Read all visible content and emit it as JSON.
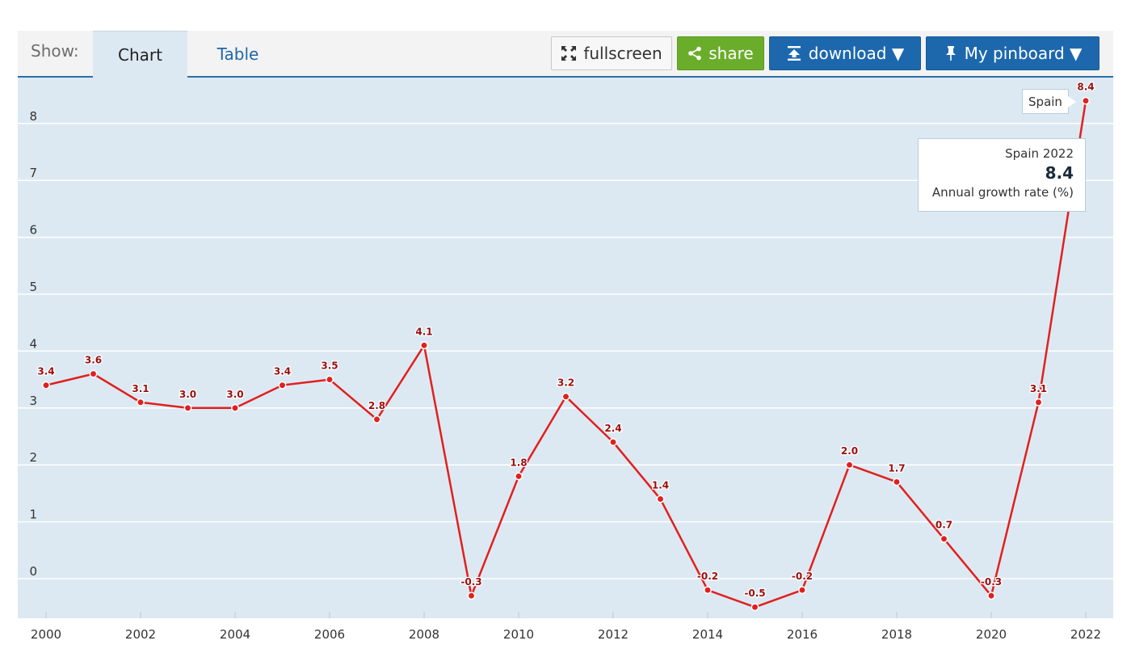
{
  "toolbar": {
    "show_label": "Show:",
    "tabs": [
      {
        "label": "Chart",
        "active": true
      },
      {
        "label": "Table",
        "active": false
      }
    ],
    "buttons": {
      "fullscreen": "fullscreen",
      "share": "share",
      "download": "download ▼",
      "pinboard": "My pinboard ▼"
    },
    "icons": {
      "fullscreen": "expand-arrows-icon",
      "share": "share-nodes-icon",
      "download": "download-icon",
      "pinboard": "pin-icon"
    }
  },
  "colors": {
    "line": "#e0201f",
    "label": "#9b0d0d",
    "plot_background": "#dde9f2",
    "share_button": "#6aad2b",
    "primary_button": "#1d68ad"
  },
  "tooltip": {
    "title": "Spain 2022",
    "value": "8.4",
    "unit": "Annual growth rate (%)"
  },
  "series_tag": "Spain",
  "chart_data": {
    "type": "line",
    "title": "",
    "xlabel": "",
    "ylabel": "",
    "x": [
      2000,
      2001,
      2002,
      2003,
      2004,
      2005,
      2006,
      2007,
      2008,
      2009,
      2010,
      2011,
      2012,
      2013,
      2014,
      2015,
      2016,
      2017,
      2018,
      2019,
      2020,
      2021,
      2022
    ],
    "series": [
      {
        "name": "Spain",
        "values": [
          3.4,
          3.6,
          3.1,
          3.0,
          3.0,
          3.4,
          3.5,
          2.8,
          4.1,
          -0.3,
          1.8,
          3.2,
          2.4,
          1.4,
          -0.2,
          -0.5,
          -0.2,
          2.0,
          1.7,
          0.7,
          -0.3,
          3.1,
          8.4
        ],
        "labels": [
          "3.4",
          "3.6",
          "3.1",
          "3.0",
          "3.0",
          "3.4",
          "3.5",
          "2.8",
          "4.1",
          "-0.3",
          "1.8",
          "3.2",
          "2.4",
          "1.4",
          "-0.2",
          "-0.5",
          "-0.2",
          "2.0",
          "1.7",
          "0.7",
          "-0.3",
          "3.1",
          "8.4"
        ]
      }
    ],
    "xticks": [
      2000,
      2002,
      2004,
      2006,
      2008,
      2010,
      2012,
      2014,
      2016,
      2018,
      2020,
      2022
    ],
    "xtick_labels": [
      "2000",
      "2002",
      "2004",
      "2006",
      "2008",
      "2010",
      "2012",
      "2014",
      "2016",
      "2018",
      "2020",
      "2022"
    ],
    "yticks": [
      0,
      1,
      2,
      3,
      4,
      5,
      6,
      7,
      8
    ],
    "ytick_labels": [
      "0",
      "1",
      "2",
      "3",
      "4",
      "5",
      "6",
      "7",
      "8"
    ],
    "xlim": [
      2000,
      2022
    ],
    "ylim": [
      -0.6,
      8.8
    ],
    "grid": true,
    "legend": "none"
  }
}
